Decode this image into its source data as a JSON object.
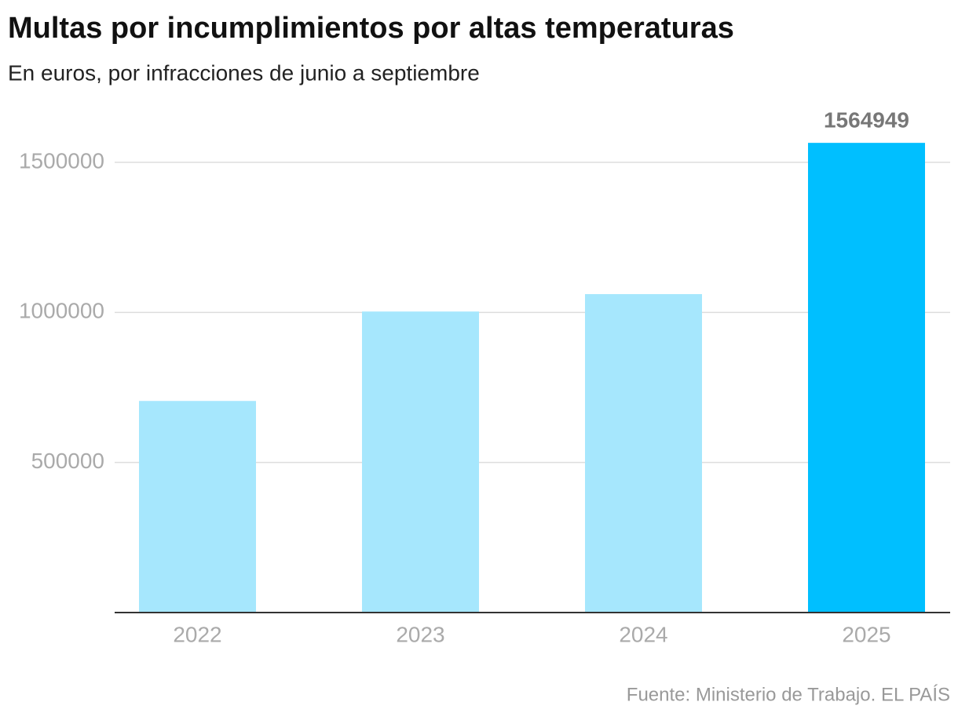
{
  "chart_data": {
    "type": "bar",
    "title": "Multas por incumplimientos por altas temperaturas",
    "subtitle": "En euros, por infracciones de junio a septiembre",
    "source": "Fuente: Ministerio de Trabajo. EL PAÍS",
    "categories": [
      "2022",
      "2023",
      "2024",
      "2025"
    ],
    "values": [
      705000,
      1003000,
      1061000,
      1564949
    ],
    "colors": [
      "#a6e7fd",
      "#a6e7fd",
      "#a6e7fd",
      "#00bfff"
    ],
    "data_labels": [
      false,
      false,
      false,
      true
    ],
    "ylim": [
      0,
      1500000
    ],
    "yticks": [
      500000,
      1000000,
      1500000
    ],
    "grid": true
  }
}
